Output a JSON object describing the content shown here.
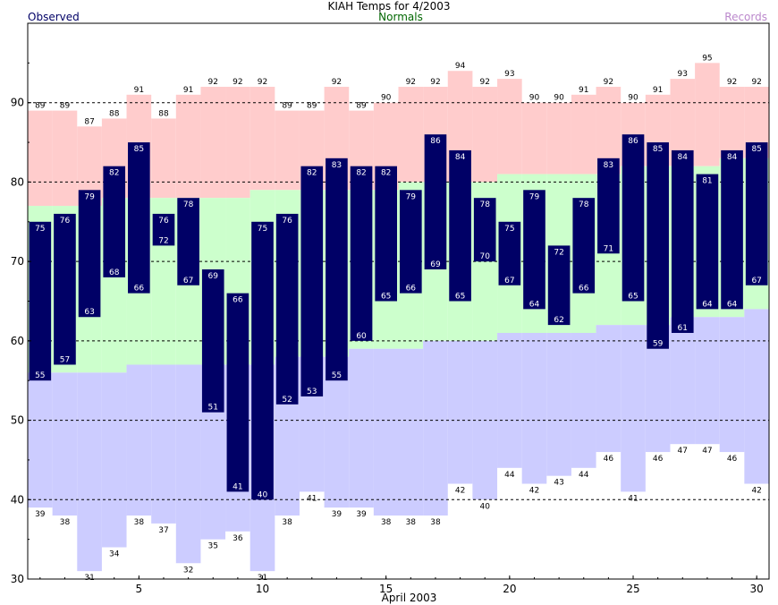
{
  "header": {
    "title": "KIAH Temps for 4/2003",
    "observed_label": "Observed",
    "normals_label": "Normals",
    "records_label": "Records"
  },
  "colors": {
    "observed": "#000066",
    "observed_text": "#ffffff",
    "normals_fill": "#ccffcc",
    "records_high_fill": "#ffcccc",
    "records_low_fill": "#ccccff",
    "normals_text": "#006600",
    "records_text": "#bb88cc",
    "title_text": "#000000",
    "observed_label_text": "#000066"
  },
  "chart_data": {
    "type": "bar",
    "title": "KIAH Temps for 4/2003",
    "xlabel": "April 2003",
    "ylabel": "",
    "ylim": [
      30,
      100
    ],
    "yticks": [
      30,
      40,
      50,
      60,
      70,
      80,
      90
    ],
    "xticks": [
      5,
      10,
      15,
      20,
      25,
      30
    ],
    "grid": "dashed at 40, 50, 60, 70, 80, 90",
    "legend": "top: Observed (left), Normals (center), Records (right)",
    "days": [
      1,
      2,
      3,
      4,
      5,
      6,
      7,
      8,
      9,
      10,
      11,
      12,
      13,
      14,
      15,
      16,
      17,
      18,
      19,
      20,
      21,
      22,
      23,
      24,
      25,
      26,
      27,
      28,
      29,
      30
    ],
    "series": [
      {
        "name": "Observed",
        "high": [
          75,
          76,
          79,
          82,
          85,
          76,
          78,
          69,
          66,
          75,
          76,
          82,
          83,
          82,
          82,
          79,
          86,
          84,
          78,
          75,
          79,
          72,
          78,
          83,
          86,
          85,
          84,
          81,
          84,
          85
        ],
        "low": [
          55,
          57,
          63,
          68,
          66,
          72,
          67,
          51,
          41,
          40,
          52,
          53,
          55,
          60,
          65,
          66,
          69,
          65,
          70,
          67,
          64,
          62,
          66,
          71,
          65,
          59,
          61,
          64,
          64,
          67
        ]
      },
      {
        "name": "Normals",
        "high": [
          77,
          77,
          77,
          78,
          78,
          78,
          78,
          78,
          78,
          79,
          79,
          79,
          79,
          79,
          79,
          80,
          80,
          80,
          80,
          81,
          81,
          81,
          81,
          81,
          82,
          82,
          82,
          82,
          83,
          83
        ],
        "low": [
          56,
          56,
          56,
          56,
          57,
          57,
          57,
          57,
          57,
          57,
          58,
          58,
          58,
          59,
          59,
          59,
          60,
          60,
          60,
          61,
          61,
          61,
          61,
          62,
          62,
          62,
          63,
          63,
          63,
          64
        ]
      },
      {
        "name": "Records",
        "high": [
          89,
          89,
          87,
          88,
          91,
          88,
          91,
          92,
          92,
          92,
          89,
          89,
          92,
          89,
          90,
          92,
          92,
          94,
          92,
          93,
          90,
          90,
          91,
          92,
          90,
          91,
          93,
          95,
          92,
          92
        ],
        "low": [
          39,
          38,
          31,
          34,
          38,
          37,
          32,
          35,
          36,
          31,
          38,
          41,
          39,
          39,
          38,
          38,
          38,
          42,
          40,
          44,
          42,
          43,
          44,
          46,
          41,
          46,
          47,
          47,
          46,
          42
        ]
      }
    ]
  }
}
